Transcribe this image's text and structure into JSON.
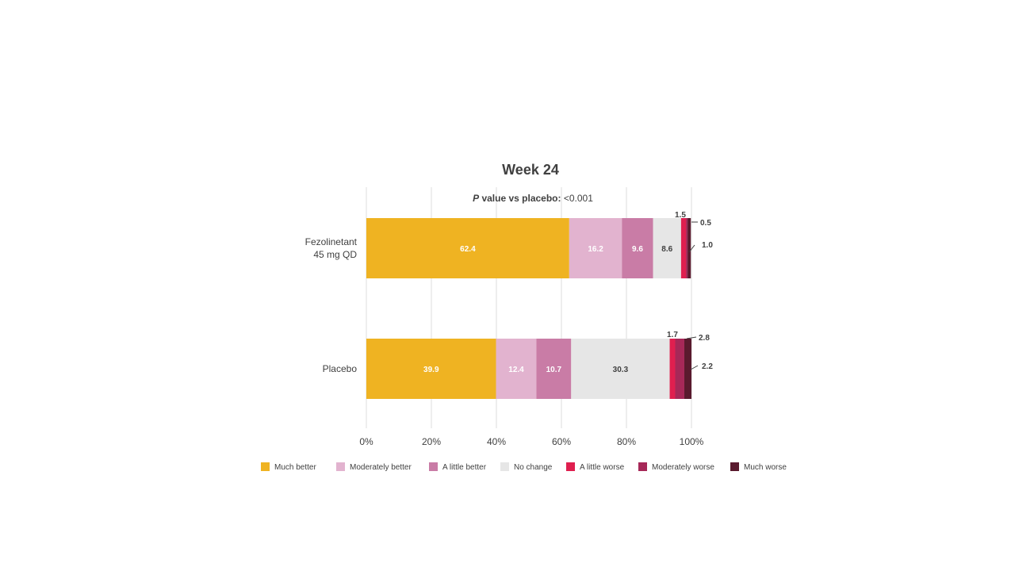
{
  "chart_data": {
    "type": "bar",
    "orientation": "horizontal",
    "stacked": true,
    "title": "Week 24",
    "annotation": {
      "p_italic": "P",
      "p_bold_rest": " value vs placebo:",
      "value": " <0.001"
    },
    "categories": [
      "Fezolinetant 45 mg QD",
      "Placebo"
    ],
    "category_label_lines": [
      [
        "Fezolinetant",
        "45 mg QD"
      ],
      [
        "Placebo"
      ]
    ],
    "series": [
      {
        "name": "Much better",
        "color": "#EFB322",
        "label_color": "#ffffff",
        "values": [
          62.4,
          39.9
        ]
      },
      {
        "name": "Moderately better",
        "color": "#E2B3CF",
        "label_color": "#ffffff",
        "values": [
          16.2,
          12.4
        ]
      },
      {
        "name": "A little better",
        "color": "#C97CA6",
        "label_color": "#ffffff",
        "values": [
          9.6,
          10.7
        ]
      },
      {
        "name": "No change",
        "color": "#E6E6E6",
        "label_color": "#404040",
        "values": [
          8.6,
          30.3
        ]
      },
      {
        "name": "A little worse",
        "color": "#DF1F4F",
        "label_color": "#404040",
        "values": [
          1.5,
          1.7
        ]
      },
      {
        "name": "Moderately worse",
        "color": "#A62858",
        "label_color": "#404040",
        "values": [
          0.5,
          2.8
        ]
      },
      {
        "name": "Much worse",
        "color": "#5A1A2E",
        "label_color": "#404040",
        "values": [
          1.0,
          2.2
        ]
      }
    ],
    "xlim": [
      0,
      100
    ],
    "xticks": [
      "0%",
      "20%",
      "40%",
      "60%",
      "80%",
      "100%"
    ],
    "grid": true,
    "legend_position": "bottom"
  }
}
